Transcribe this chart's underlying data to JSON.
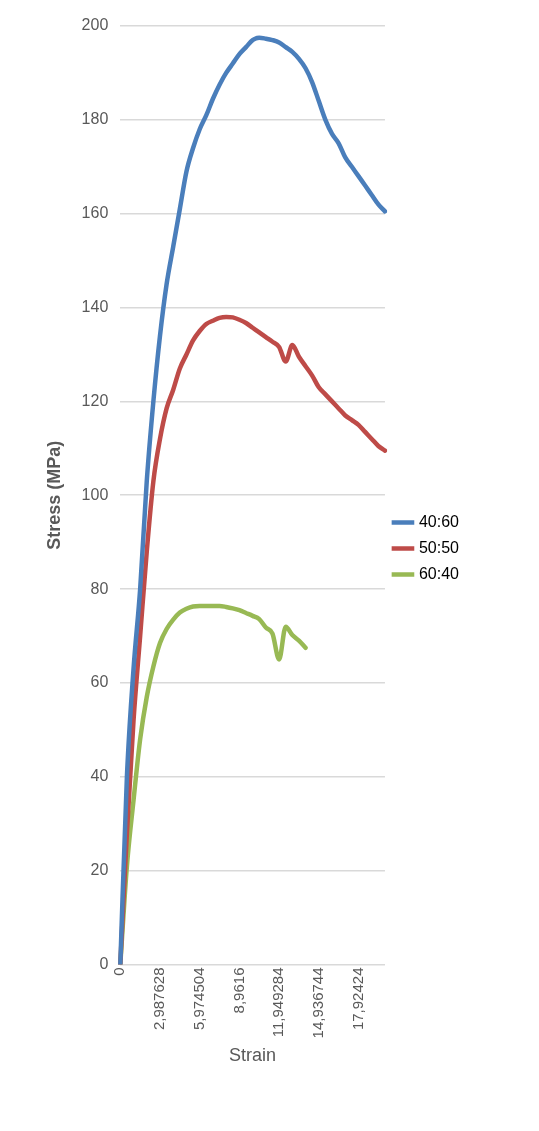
{
  "chart_data": {
    "type": "line",
    "xlabel": "Strain",
    "ylabel": "Stress (MPa)",
    "categories": [
      "0",
      null,
      null,
      null,
      null,
      null,
      "2,987628",
      null,
      null,
      null,
      null,
      null,
      "5,974504",
      null,
      null,
      null,
      null,
      null,
      "8,9616",
      null,
      null,
      null,
      null,
      null,
      "11,949284",
      null,
      null,
      null,
      null,
      null,
      "14,936744",
      null,
      null,
      null,
      null,
      null,
      "17,92424",
      null,
      null,
      null,
      null
    ],
    "ylim": [
      0,
      200
    ],
    "yticks": [
      0,
      20,
      40,
      60,
      80,
      100,
      120,
      140,
      160,
      180,
      200
    ],
    "grid": "y",
    "legend": "right",
    "marker": "none",
    "line_style": "solid",
    "series": [
      {
        "name": "40:60",
        "color": "#4a7ebb",
        "values": [
          0,
          40,
          63,
          80,
          103,
          120,
          134,
          145,
          153,
          161,
          169,
          174,
          178,
          181,
          184.5,
          187.5,
          190,
          192,
          194,
          195.5,
          197,
          197.5,
          197.3,
          197,
          196.5,
          195.5,
          194.5,
          193,
          191,
          188,
          184,
          180,
          177,
          175,
          172,
          170,
          168,
          166,
          164,
          162,
          160.5
        ]
      },
      {
        "name": "50:50",
        "color": "#be4b48",
        "values": [
          0,
          28,
          52,
          70,
          88,
          103,
          112,
          118.5,
          122.5,
          127,
          130,
          133,
          135,
          136.5,
          137.2,
          137.8,
          138,
          137.9,
          137.4,
          136.7,
          135.7,
          134.7,
          133.7,
          132.7,
          131.6,
          128.5,
          132,
          129.5,
          127.5,
          125.5,
          123,
          121.5,
          120,
          118.5,
          117,
          116,
          115,
          113.5,
          112,
          110.5,
          109.5
        ]
      },
      {
        "name": "60:40",
        "color": "#98b954",
        "values": [
          0,
          21,
          35,
          48,
          57,
          63.5,
          68.5,
          71.5,
          73.5,
          75,
          75.8,
          76.3,
          76.4,
          76.4,
          76.4,
          76.4,
          76.2,
          75.9,
          75.5,
          74.9,
          74.3,
          73.6,
          71.8,
          70.5,
          65,
          72,
          70.2,
          69,
          67.5,
          null,
          null,
          null,
          null,
          null,
          null,
          null,
          null,
          null,
          null,
          null,
          null
        ]
      }
    ]
  }
}
